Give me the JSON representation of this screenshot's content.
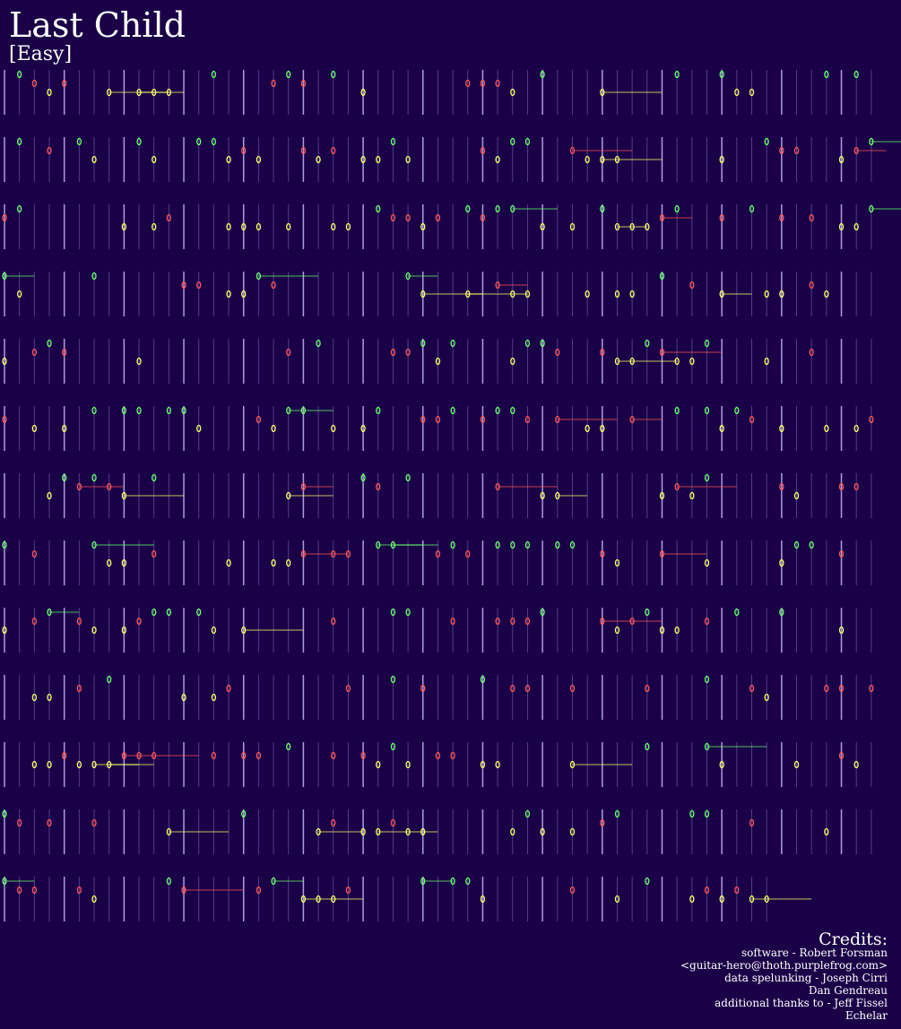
{
  "header": {
    "title": "Last Child",
    "difficulty": "[Easy]"
  },
  "credits": {
    "heading": "Credits:",
    "lines": [
      "software - Robert Forsman",
      "<guitar-hero@thoth.purplefrog.com>",
      "data spelunking - Joseph Cirri",
      "Dan Gendreau",
      "additional thanks to - Jeff Fissel",
      "Echelar"
    ]
  }
}
